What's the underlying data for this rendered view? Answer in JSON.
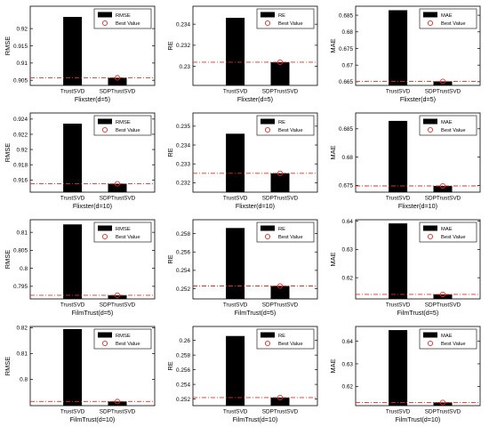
{
  "legend_best_label": "Best Value",
  "colors": {
    "bar": "#000000",
    "best_line": "#e0302a",
    "marker": "#e0302a",
    "axis": "#000000"
  },
  "chart_data": [
    {
      "type": "bar",
      "xlabel": "Flixster(d=5)",
      "ylabel": "RMSE",
      "legend": "RMSE",
      "categories": [
        "TrustSVD",
        "SDPTrustSVD"
      ],
      "values": [
        0.9234,
        0.9057
      ],
      "best": 0.9057,
      "ylim": [
        0.9035,
        0.9265
      ],
      "yticks": [
        0.905,
        0.91,
        0.915,
        0.92
      ],
      "yticklabels": [
        "0.905",
        "0.91",
        "0.915",
        "0.92"
      ]
    },
    {
      "type": "bar",
      "xlabel": "Flixster(d=5)",
      "ylabel": "RE",
      "legend": "RE",
      "categories": [
        "TrustSVD",
        "SDPTrustSVD"
      ],
      "values": [
        0.2346,
        0.2304
      ],
      "best": 0.2304,
      "ylim": [
        0.2282,
        0.2357
      ],
      "yticks": [
        0.23,
        0.232,
        0.234
      ],
      "yticklabels": [
        "0.23",
        "0.232",
        "0.234"
      ]
    },
    {
      "type": "bar",
      "xlabel": "Flixster(d=5)",
      "ylabel": "MAE",
      "legend": "MAE",
      "categories": [
        "TrustSVD",
        "SDPTrustSVD"
      ],
      "values": [
        0.6865,
        0.6651
      ],
      "best": 0.6651,
      "ylim": [
        0.6639,
        0.6877
      ],
      "yticks": [
        0.665,
        0.67,
        0.675,
        0.68,
        0.685
      ],
      "yticklabels": [
        "0.665",
        "0.67",
        "0.675",
        "0.68",
        "0.685"
      ]
    },
    {
      "type": "bar",
      "xlabel": "Flixster(d=10)",
      "ylabel": "RMSE",
      "legend": "RMSE",
      "categories": [
        "TrustSVD",
        "SDPTrustSVD"
      ],
      "values": [
        0.9234,
        0.9155
      ],
      "best": 0.9155,
      "ylim": [
        0.9144,
        0.9248
      ],
      "yticks": [
        0.916,
        0.918,
        0.92,
        0.922,
        0.924
      ],
      "yticklabels": [
        "0.916",
        "0.918",
        "0.92",
        "0.922",
        "0.924"
      ]
    },
    {
      "type": "bar",
      "xlabel": "Flixster(d=10)",
      "ylabel": "RE",
      "legend": "RE",
      "categories": [
        "TrustSVD",
        "SDPTrustSVD"
      ],
      "values": [
        0.2346,
        0.2325
      ],
      "best": 0.2325,
      "ylim": [
        0.2315,
        0.2357
      ],
      "yticks": [
        0.232,
        0.233,
        0.234,
        0.235
      ],
      "yticklabels": [
        "0.232",
        "0.233",
        "0.234",
        "0.235"
      ]
    },
    {
      "type": "bar",
      "xlabel": "Flixster(d=10)",
      "ylabel": "MAE",
      "legend": "MAE",
      "categories": [
        "TrustSVD",
        "SDPTrustSVD"
      ],
      "values": [
        0.6864,
        0.6749
      ],
      "best": 0.6749,
      "ylim": [
        0.6738,
        0.6878
      ],
      "yticks": [
        0.675,
        0.68,
        0.685
      ],
      "yticklabels": [
        "0.675",
        "0.68",
        "0.685"
      ]
    },
    {
      "type": "bar",
      "xlabel": "FilmTrust(d=5)",
      "ylabel": "RMSE",
      "legend": "RMSE",
      "categories": [
        "TrustSVD",
        "SDPTrustSVD"
      ],
      "values": [
        0.8122,
        0.7925
      ],
      "best": 0.7925,
      "ylim": [
        0.7915,
        0.8135
      ],
      "yticks": [
        0.795,
        0.8,
        0.805,
        0.81
      ],
      "yticklabels": [
        "0.795",
        "0.8",
        "0.805",
        "0.81"
      ]
    },
    {
      "type": "bar",
      "xlabel": "FilmTrust(d=5)",
      "ylabel": "RE",
      "legend": "RE",
      "categories": [
        "TrustSVD",
        "SDPTrustSVD"
      ],
      "values": [
        0.2586,
        0.2523
      ],
      "best": 0.2523,
      "ylim": [
        0.2509,
        0.2595
      ],
      "yticks": [
        0.252,
        0.254,
        0.256,
        0.258
      ],
      "yticklabels": [
        "0.252",
        "0.254",
        "0.256",
        "0.258"
      ]
    },
    {
      "type": "bar",
      "xlabel": "FilmTrust(d=5)",
      "ylabel": "MAE",
      "legend": "MAE",
      "categories": [
        "TrustSVD",
        "SDPTrustSVD"
      ],
      "values": [
        0.6392,
        0.6141
      ],
      "best": 0.6141,
      "ylim": [
        0.6125,
        0.6405
      ],
      "yticks": [
        0.62,
        0.63,
        0.64
      ],
      "yticklabels": [
        "0.62",
        "0.63",
        "0.64"
      ]
    },
    {
      "type": "bar",
      "xlabel": "FilmTrust(d=10)",
      "ylabel": "RMSE",
      "legend": "RMSE",
      "categories": [
        "TrustSVD",
        "SDPTrustSVD"
      ],
      "values": [
        0.8195,
        0.7914
      ],
      "best": 0.7914,
      "ylim": [
        0.7898,
        0.8205
      ],
      "yticks": [
        0.8,
        0.81,
        0.82
      ],
      "yticklabels": [
        "0.8",
        "0.81",
        "0.82"
      ]
    },
    {
      "type": "bar",
      "xlabel": "FilmTrust(d=10)",
      "ylabel": "RE",
      "legend": "RE",
      "categories": [
        "TrustSVD",
        "SDPTrustSVD"
      ],
      "values": [
        0.2606,
        0.2522
      ],
      "best": 0.2522,
      "ylim": [
        0.2511,
        0.2619
      ],
      "yticks": [
        0.252,
        0.254,
        0.256,
        0.258,
        0.26
      ],
      "yticklabels": [
        "0.252",
        "0.254",
        "0.256",
        "0.258",
        "0.26"
      ]
    },
    {
      "type": "bar",
      "xlabel": "FilmTrust(d=10)",
      "ylabel": "MAE",
      "legend": "MAE",
      "categories": [
        "TrustSVD",
        "SDPTrustSVD"
      ],
      "values": [
        0.6449,
        0.6129
      ],
      "best": 0.6129,
      "ylim": [
        0.6115,
        0.6465
      ],
      "yticks": [
        0.62,
        0.63,
        0.64
      ],
      "yticklabels": [
        "0.62",
        "0.63",
        "0.64"
      ]
    }
  ]
}
